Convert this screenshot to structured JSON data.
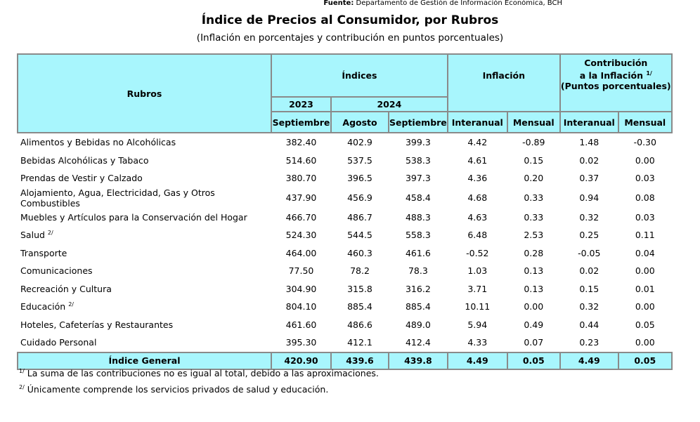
{
  "source": {
    "label": "Fuente:",
    "text": "Departamento de Gestión de Información Económica, BCH"
  },
  "title": "Índice de Precios al Consumidor, por Rubros",
  "subtitle": "(Inflación en porcentajes y contribución en puntos porcentuales)",
  "headers": {
    "rubros": "Rubros",
    "indices": "Índices",
    "inflacion": "Inflación",
    "contribucion_1": "Contribución",
    "contribucion_2": "a la Inflación",
    "contribucion_sup": "1/",
    "contribucion_3": "(Puntos porcentuales)",
    "year_2023": "2023",
    "year_2024": "2024",
    "septiembre_2023": "Septiembre",
    "agosto": "Agosto",
    "septiembre_2024": "Septiembre",
    "interanual_inf": "Interanual",
    "mensual_inf": "Mensual",
    "interanual_con": "Interanual",
    "mensual_con": "Mensual"
  },
  "rows": [
    {
      "rubro": "Alimentos y Bebidas no Alcohólicas",
      "sup": "",
      "v": [
        "382.40",
        "402.9",
        "399.3",
        "4.42",
        "-0.89",
        "1.48",
        "-0.30"
      ]
    },
    {
      "rubro": "Bebidas Alcohólicas y Tabaco",
      "sup": "",
      "v": [
        "514.60",
        "537.5",
        "538.3",
        "4.61",
        "0.15",
        "0.02",
        "0.00"
      ]
    },
    {
      "rubro": "Prendas de Vestir y Calzado",
      "sup": "",
      "v": [
        "380.70",
        "396.5",
        "397.3",
        "4.36",
        "0.20",
        "0.37",
        "0.03"
      ]
    },
    {
      "rubro": "Alojamiento, Agua, Electricidad, Gas y Otros Combustibles",
      "sup": "",
      "v": [
        "437.90",
        "456.9",
        "458.4",
        "4.68",
        "0.33",
        "0.94",
        "0.08"
      ]
    },
    {
      "rubro": "Muebles y Artículos para la Conservación del Hogar",
      "sup": "",
      "v": [
        "466.70",
        "486.7",
        "488.3",
        "4.63",
        "0.33",
        "0.32",
        "0.03"
      ]
    },
    {
      "rubro": "Salud",
      "sup": "2/",
      "v": [
        "524.30",
        "544.5",
        "558.3",
        "6.48",
        "2.53",
        "0.25",
        "0.11"
      ]
    },
    {
      "rubro": "Transporte",
      "sup": "",
      "v": [
        "464.00",
        "460.3",
        "461.6",
        "-0.52",
        "0.28",
        "-0.05",
        "0.04"
      ]
    },
    {
      "rubro": "Comunicaciones",
      "sup": "",
      "v": [
        "77.50",
        "78.2",
        "78.3",
        "1.03",
        "0.13",
        "0.02",
        "0.00"
      ]
    },
    {
      "rubro": "Recreación y Cultura",
      "sup": "",
      "v": [
        "304.90",
        "315.8",
        "316.2",
        "3.71",
        "0.13",
        "0.15",
        "0.01"
      ]
    },
    {
      "rubro": "Educación",
      "sup": "2/",
      "v": [
        "804.10",
        "885.4",
        "885.4",
        "10.11",
        "0.00",
        "0.32",
        "0.00"
      ]
    },
    {
      "rubro": "Hoteles, Cafeterías y Restaurantes",
      "sup": "",
      "v": [
        "461.60",
        "486.6",
        "489.0",
        "5.94",
        "0.49",
        "0.44",
        "0.05"
      ]
    },
    {
      "rubro": "Cuidado Personal",
      "sup": "",
      "v": [
        "395.30",
        "412.1",
        "412.4",
        "4.33",
        "0.07",
        "0.23",
        "0.00"
      ]
    }
  ],
  "total": {
    "rubro": "Índice General",
    "v": [
      "420.90",
      "439.6",
      "439.8",
      "4.49",
      "0.05",
      "4.49",
      "0.05"
    ]
  },
  "footnotes": [
    {
      "mark": "1/",
      "text": "La suma de las contribuciones no es igual al total, debido a las aproximaciones."
    },
    {
      "mark": "2/",
      "text": "Únicamente comprende los servicios privados de salud y educación."
    }
  ],
  "colors": {
    "header_bg": "#a8f6fd",
    "border": "#8a8a8a"
  }
}
